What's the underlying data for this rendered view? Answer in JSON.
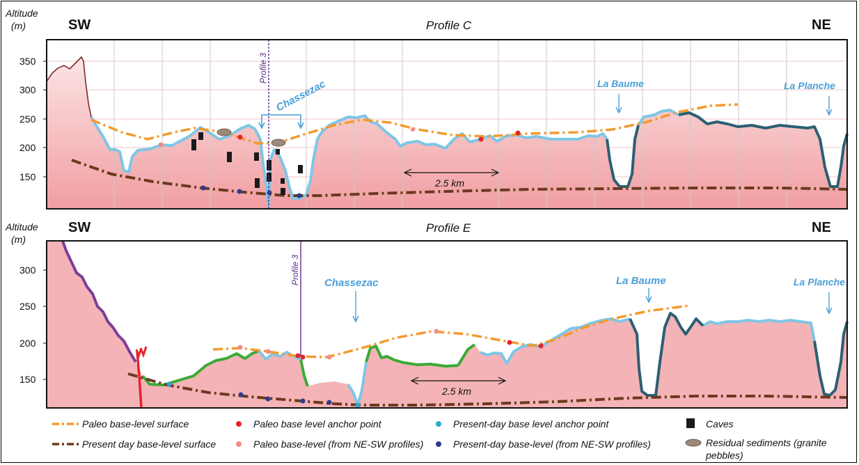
{
  "profile_c": {
    "y_axis_title_1": "Altitude",
    "y_axis_title_2": "(m)",
    "left_dir": "SW",
    "right_dir": "NE",
    "title": "Profile C",
    "ticks": [
      "350",
      "300",
      "250",
      "200",
      "150"
    ],
    "profile_line_label": "Profile 3",
    "river_label": "Chassezac",
    "valley_1": "La Baume",
    "valley_2": "La Planche",
    "scale_label": "2.5 km"
  },
  "profile_e": {
    "y_axis_title_1": "Altitude",
    "y_axis_title_2": "(m)",
    "left_dir": "SW",
    "right_dir": "NE",
    "title": "Profile E",
    "ticks": [
      "300",
      "250",
      "200",
      "150"
    ],
    "profile_line_label": "Profile 3",
    "river_label": "Chassezac",
    "valley_1": "La Baume",
    "valley_2": "La Planche",
    "scale_label": "2.5 km"
  },
  "legend": {
    "paleo_surface": "Paleo base-level surface",
    "present_surface": "Present day base-level surface",
    "paleo_anchor": "Paleo base level anchor point",
    "paleo_from_profiles": "Paleo base-level (from NE-SW profiles)",
    "present_anchor": "Present-day base level anchor point",
    "present_from_profiles": "Present-day base-level (from NE-SW profiles)",
    "caves": "Caves",
    "residual_1": "Residual sediments (granite",
    "residual_2": "pebbles)"
  },
  "colors": {
    "terrain_fill": "#f4b3b6",
    "paleo_line": "#f39a2c",
    "present_line": "#6b3a1f",
    "river_light": "#7ec6e6",
    "river_dark": "#2d5f73",
    "green_segment": "#3aaa35",
    "purple_segment": "#7b3f98",
    "red_fault": "#e4242b",
    "anchor_red": "#e4242b",
    "anchor_pink": "#f08c86",
    "anchor_cyan": "#29a9d0",
    "anchor_navy": "#2e3a8c",
    "cave": "#1a1a1a",
    "sediment": "#9b8a7c"
  }
}
